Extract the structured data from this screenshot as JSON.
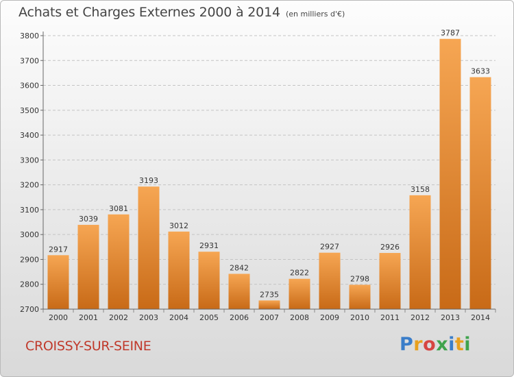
{
  "header": {
    "title": "Achats et Charges Externes 2000 à 2014",
    "unit": "(en milliers d'€)"
  },
  "footer": {
    "commune": "CROISSY-SUR-SEINE",
    "logo_letters": [
      "P",
      "r",
      "o",
      "x",
      "i",
      "t",
      "i"
    ],
    "logo_colors": [
      "#3a7dc9",
      "#e8a01e",
      "#d64541",
      "#3fa34d",
      "#3a7dc9",
      "#e8a01e",
      "#3fa34d"
    ]
  },
  "chart_data": {
    "type": "bar",
    "title": "Achats et Charges Externes 2000 à 2014",
    "subtitle": "(en milliers d'€)",
    "xlabel": "",
    "ylabel": "",
    "categories": [
      "2000",
      "2001",
      "2002",
      "2003",
      "2004",
      "2005",
      "2006",
      "2007",
      "2008",
      "2009",
      "2010",
      "2011",
      "2012",
      "2013",
      "2014"
    ],
    "values": [
      2917,
      3039,
      3081,
      3193,
      3012,
      2931,
      2842,
      2735,
      2822,
      2927,
      2798,
      2926,
      3158,
      3787,
      3633
    ],
    "ylim": [
      2700,
      3800
    ],
    "yticks": [
      2700,
      2800,
      2900,
      3000,
      3100,
      3200,
      3300,
      3400,
      3500,
      3600,
      3700,
      3800
    ],
    "grid": true,
    "legend": "none",
    "bar_color_top": "#f6a653",
    "bar_color_bottom": "#c86a17"
  }
}
